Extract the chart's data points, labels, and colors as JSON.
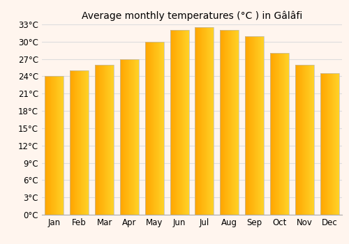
{
  "title": "Average monthly temperatures (°C ) in Gâlâfi",
  "months": [
    "Jan",
    "Feb",
    "Mar",
    "Apr",
    "May",
    "Jun",
    "Jul",
    "Aug",
    "Sep",
    "Oct",
    "Nov",
    "Dec"
  ],
  "values": [
    24.0,
    25.0,
    26.0,
    27.0,
    30.0,
    32.0,
    32.5,
    32.0,
    31.0,
    28.0,
    26.0,
    24.5
  ],
  "bar_color_main": "#FFA500",
  "bar_color_light": "#FFD070",
  "ylim": [
    0,
    33
  ],
  "yticks": [
    0,
    3,
    6,
    9,
    12,
    15,
    18,
    21,
    24,
    27,
    30,
    33
  ],
  "ytick_labels": [
    "0°C",
    "3°C",
    "6°C",
    "9°C",
    "12°C",
    "15°C",
    "18°C",
    "21°C",
    "24°C",
    "27°C",
    "30°C",
    "33°C"
  ],
  "background_color": "#FFF5EE",
  "plot_bg_color": "#FFF5EE",
  "grid_color": "#dddddd",
  "title_fontsize": 10,
  "tick_fontsize": 8.5
}
